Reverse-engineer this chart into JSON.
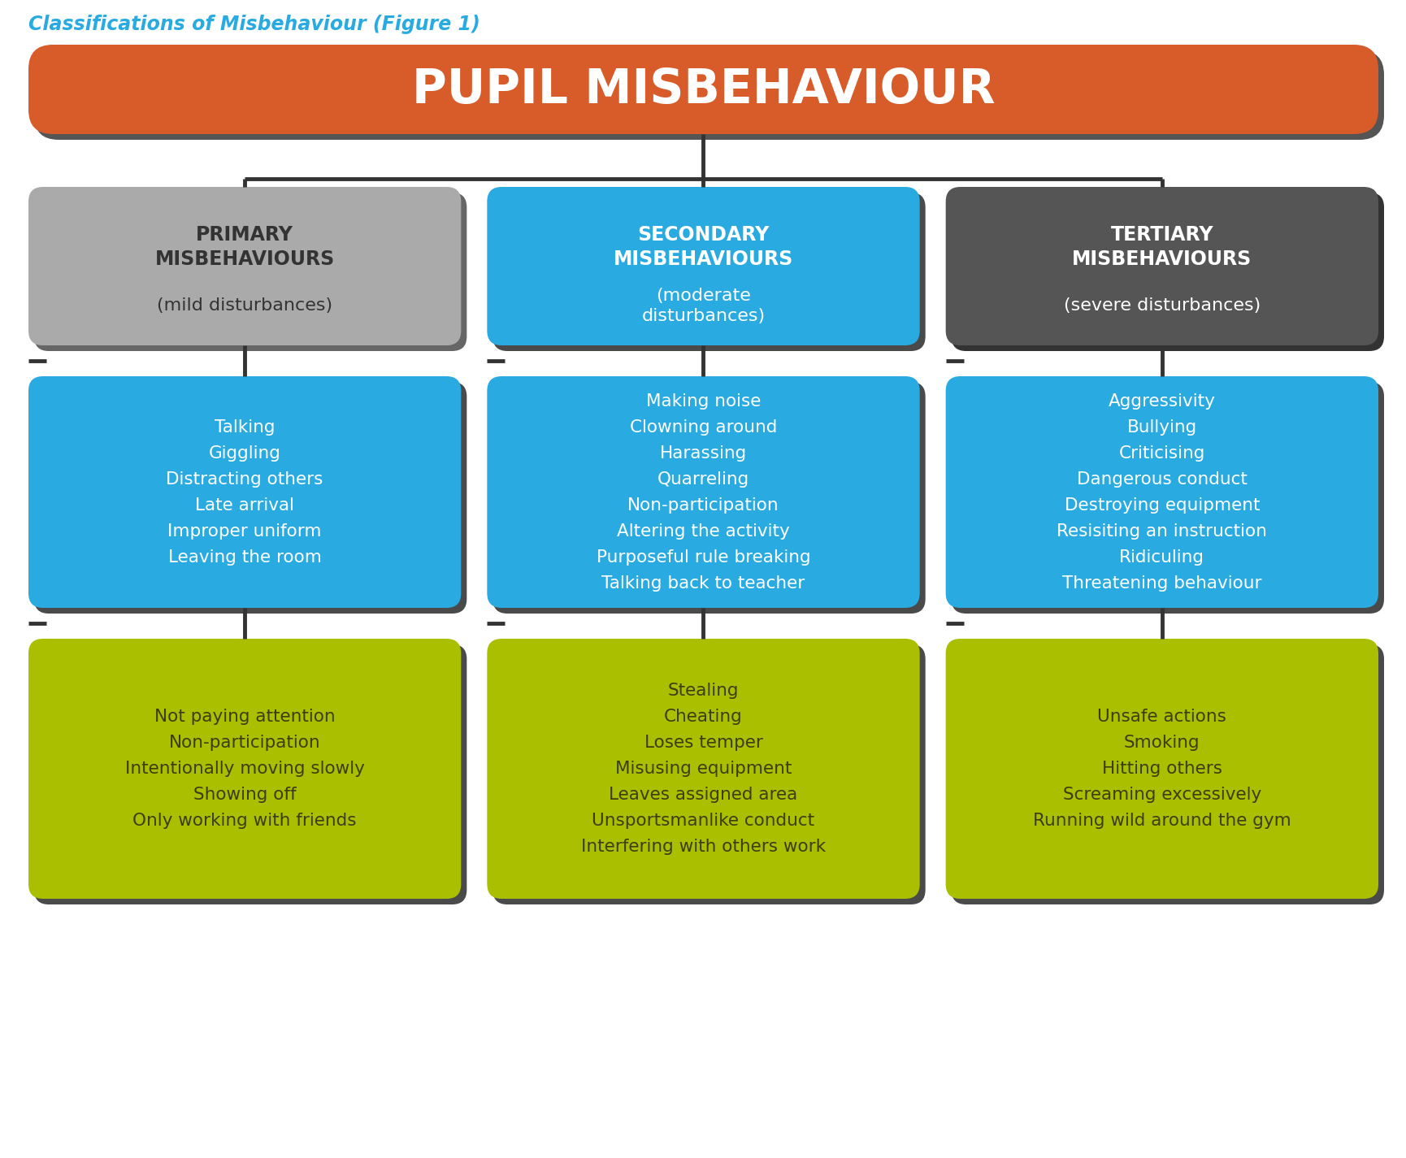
{
  "title": "PUPIL MISBEHAVIOUR",
  "caption": "Classifications of Misbehaviour (Figure 1)",
  "caption_color": "#29ABE2",
  "bg_color": "#FFFFFF",
  "title_bg": "#D85C2A",
  "title_shadow": "#555555",
  "title_text_color": "#FFFFFF",
  "line_color": "#333333",
  "columns": [
    {
      "header": "PRIMARY\nMISBEHAVIOURS\n(mild disturbances)",
      "header_bg": "#AAAAAA",
      "header_shadow": "#666666",
      "header_text_bold": "PRIMARY\nMISBEHAVIOURS",
      "header_text_normal": "(mild disturbances)",
      "header_text_color": "#333333",
      "box1_bg": "#29ABE2",
      "box1_shadow": "#4A4A4A",
      "box1_text_color": "#FFFFFF",
      "box1_text": "Talking\nGiggling\nDistracting others\nLate arrival\nImproper uniform\nLeaving the room",
      "box2_bg": "#AABF00",
      "box2_shadow": "#4A4A4A",
      "box2_text_color": "#3D3D10",
      "box2_text": "Not paying attention\nNon-participation\nIntentionally moving slowly\nShowing off\nOnly working with friends"
    },
    {
      "header": "SECONDARY\nMISBEHAVIOURS\n(moderate\ndisturbances)",
      "header_bg": "#29ABE2",
      "header_shadow": "#4A4A4A",
      "header_text_bold": "SECONDARY\nMISBEHAVIOURS",
      "header_text_normal": "(moderate\ndisturbances)",
      "header_text_color": "#FFFFFF",
      "box1_bg": "#29ABE2",
      "box1_shadow": "#4A4A4A",
      "box1_text_color": "#FFFFFF",
      "box1_text": "Making noise\nClowning around\nHarassing\nQuarreling\nNon-participation\nAltering the activity\nPurposeful rule breaking\nTalking back to teacher",
      "box2_bg": "#AABF00",
      "box2_shadow": "#4A4A4A",
      "box2_text_color": "#3D3D10",
      "box2_text": "Stealing\nCheating\nLoses temper\nMisusing equipment\nLeaves assigned area\nUnsportsmanlike conduct\nInterfering with others work"
    },
    {
      "header": "TERTIARY\nMISBEHAVIOURS\n(severe disturbances)",
      "header_bg": "#555555",
      "header_shadow": "#333333",
      "header_text_bold": "TERTIARY\nMISBEHAVIOURS",
      "header_text_normal": "(severe disturbances)",
      "header_text_color": "#FFFFFF",
      "box1_bg": "#29ABE2",
      "box1_shadow": "#4A4A4A",
      "box1_text_color": "#FFFFFF",
      "box1_text": "Aggressivity\nBullying\nCriticising\nDangerous conduct\nDestroying equipment\nResisiting an instruction\nRidiculing\nThreatening behaviour",
      "box2_bg": "#AABF00",
      "box2_shadow": "#4A4A4A",
      "box2_text_color": "#3D3D10",
      "box2_text": "Unsafe actions\nSmoking\nHitting others\nScreaming excessively\nRunning wild around the gym"
    }
  ]
}
